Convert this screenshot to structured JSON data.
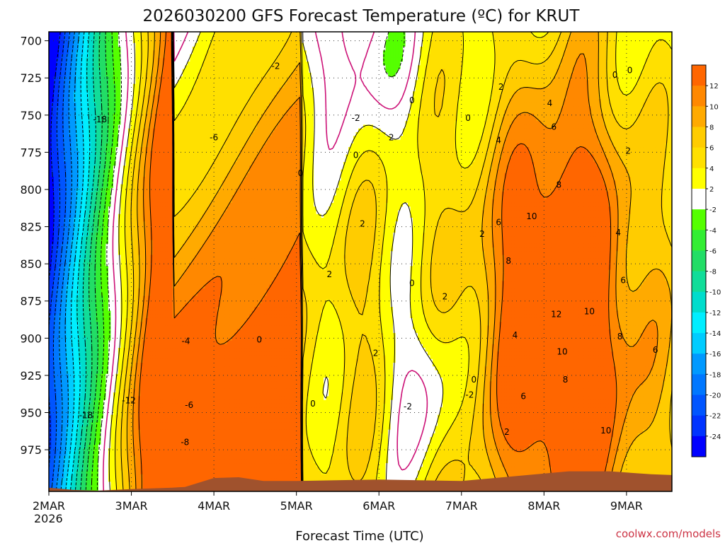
{
  "chart_data": {
    "type": "heatmap",
    "title": "2026030200 GFS Forecast Temperature (ºC) for KRUT",
    "xlabel": "Forecast Time (UTC)",
    "ylabel": "",
    "credit": "coolwx.com/models",
    "x_ticks": [
      "2MAR",
      "3MAR",
      "4MAR",
      "5MAR",
      "6MAR",
      "7MAR",
      "8MAR",
      "9MAR"
    ],
    "x_tick_sublabel": "2026",
    "x_range_days": [
      0,
      7.55
    ],
    "y_ticks": [
      700,
      725,
      750,
      775,
      800,
      825,
      850,
      875,
      900,
      925,
      950,
      975
    ],
    "y_range_hpa": [
      694,
      1003
    ],
    "grid": true,
    "colorbar": {
      "levels": [
        12,
        10,
        8,
        6,
        4,
        2,
        -2,
        -4,
        -6,
        -8,
        -10,
        -12,
        -14,
        -16,
        -18,
        -20,
        -22,
        -24
      ],
      "colors": [
        "#ff6600",
        "#ff8800",
        "#ffaa00",
        "#ffcc00",
        "#ffe000",
        "#ffff00",
        "#ffffff",
        "#55ff00",
        "#33ee33",
        "#22dd66",
        "#11dd99",
        "#00ddcc",
        "#00eeff",
        "#00ccff",
        "#0099ff",
        "#0077ff",
        "#0055ff",
        "#0033ff",
        "#0000ff"
      ]
    },
    "terrain_color": "#a0522d",
    "zero_contour_color": "#cc1177",
    "contour_labels": [
      {
        "t": 0.62,
        "p": 753,
        "v": "-18"
      },
      {
        "t": 0.45,
        "p": 952,
        "v": "-18"
      },
      {
        "t": 0.97,
        "p": 942,
        "v": "-12"
      },
      {
        "t": 1.7,
        "p": 945,
        "v": "-6"
      },
      {
        "t": 1.65,
        "p": 970,
        "v": "-8"
      },
      {
        "t": 2.0,
        "p": 765,
        "v": "-6"
      },
      {
        "t": 1.66,
        "p": 902,
        "v": "-4"
      },
      {
        "t": 2.75,
        "p": 717,
        "v": "-2"
      },
      {
        "t": 3.72,
        "p": 752,
        "v": "-2"
      },
      {
        "t": 3.05,
        "p": 789,
        "v": "0"
      },
      {
        "t": 3.72,
        "p": 777,
        "v": "0"
      },
      {
        "t": 4.4,
        "p": 740,
        "v": "0"
      },
      {
        "t": 5.08,
        "p": 752,
        "v": "0"
      },
      {
        "t": 7.04,
        "p": 720,
        "v": "0"
      },
      {
        "t": 4.15,
        "p": 765,
        "v": "2"
      },
      {
        "t": 3.8,
        "p": 823,
        "v": "2"
      },
      {
        "t": 3.4,
        "p": 857,
        "v": "2"
      },
      {
        "t": 4.4,
        "p": 863,
        "v": "0"
      },
      {
        "t": 4.8,
        "p": 872,
        "v": "2"
      },
      {
        "t": 3.96,
        "p": 910,
        "v": "2"
      },
      {
        "t": 2.55,
        "p": 901,
        "v": "0"
      },
      {
        "t": 3.2,
        "p": 944,
        "v": "0"
      },
      {
        "t": 4.35,
        "p": 946,
        "v": "-2"
      },
      {
        "t": 5.1,
        "p": 938,
        "v": "-2"
      },
      {
        "t": 5.15,
        "p": 928,
        "v": "0"
      },
      {
        "t": 5.25,
        "p": 830,
        "v": "2"
      },
      {
        "t": 5.48,
        "p": 731,
        "v": "2"
      },
      {
        "t": 5.45,
        "p": 767,
        "v": "4"
      },
      {
        "t": 5.45,
        "p": 822,
        "v": "6"
      },
      {
        "t": 5.57,
        "p": 848,
        "v": "8"
      },
      {
        "t": 5.85,
        "p": 818,
        "v": "10"
      },
      {
        "t": 6.07,
        "p": 742,
        "v": "4"
      },
      {
        "t": 6.12,
        "p": 758,
        "v": "6"
      },
      {
        "t": 6.18,
        "p": 797,
        "v": "8"
      },
      {
        "t": 6.15,
        "p": 884,
        "v": "12"
      },
      {
        "t": 6.22,
        "p": 909,
        "v": "10"
      },
      {
        "t": 6.55,
        "p": 882,
        "v": "10"
      },
      {
        "t": 6.26,
        "p": 928,
        "v": "8"
      },
      {
        "t": 6.86,
        "p": 723,
        "v": "0"
      },
      {
        "t": 7.02,
        "p": 774,
        "v": "2"
      },
      {
        "t": 6.9,
        "p": 829,
        "v": "4"
      },
      {
        "t": 6.96,
        "p": 861,
        "v": "6"
      },
      {
        "t": 6.92,
        "p": 899,
        "v": "8"
      },
      {
        "t": 7.35,
        "p": 908,
        "v": "6"
      },
      {
        "t": 6.75,
        "p": 962,
        "v": "10"
      },
      {
        "t": 5.65,
        "p": 898,
        "v": "4"
      },
      {
        "t": 5.75,
        "p": 939,
        "v": "6"
      },
      {
        "t": 5.55,
        "p": 963,
        "v": "2"
      }
    ]
  }
}
